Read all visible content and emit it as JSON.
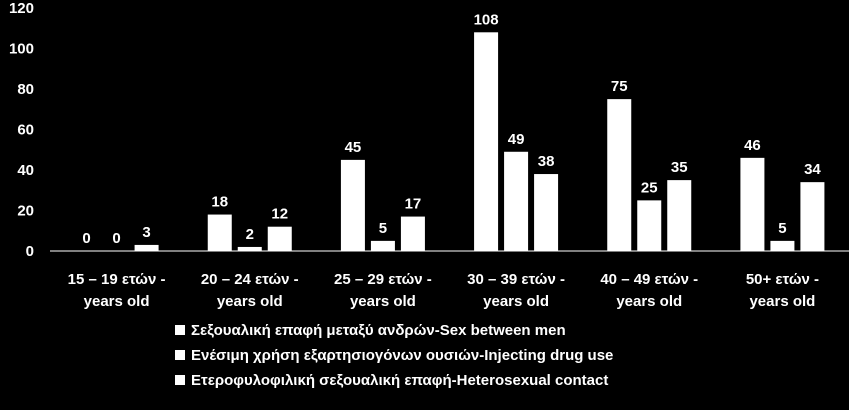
{
  "chart_data": {
    "type": "bar",
    "categories": [
      [
        "15 – 19 ετών -",
        "years old"
      ],
      [
        "20 – 24 ετών -",
        "years old"
      ],
      [
        "25 – 29 ετών -",
        "years old"
      ],
      [
        "30 – 39 ετών -",
        "years old"
      ],
      [
        "40 – 49 ετών -",
        "years old"
      ],
      [
        "50+  ετών -",
        "years old"
      ]
    ],
    "series": [
      {
        "name": "Σεξουαλική επαφή μεταξύ ανδρών-Sex between men",
        "values": [
          0,
          18,
          45,
          108,
          75,
          46
        ]
      },
      {
        "name": "Ενέσιμη χρήση εξαρτησιογόνων ουσιών-Injecting drug use",
        "values": [
          0,
          2,
          5,
          49,
          25,
          5
        ]
      },
      {
        "name": "Ετεροφυλοφιλική σεξουαλική επαφή-Heterosexual contact",
        "values": [
          3,
          12,
          17,
          38,
          35,
          34
        ]
      }
    ],
    "y_ticks": [
      "0",
      "20",
      "40",
      "60",
      "80",
      "100",
      "120"
    ],
    "ylim": [
      0,
      120
    ],
    "data_labels": true,
    "grid": false,
    "legend_position": "bottom",
    "colors": {
      "background": "#000000",
      "bars": "#ffffff",
      "text": "#ffffff"
    }
  }
}
